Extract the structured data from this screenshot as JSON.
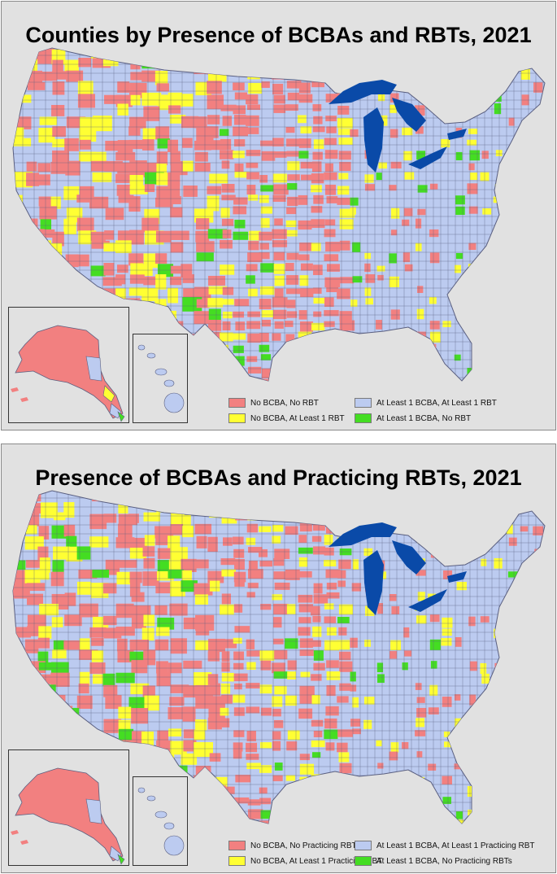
{
  "colors": {
    "no_bcba_no_rbt": "#f28080",
    "no_bcba_rbt": "#ffff33",
    "bcba_rbt": "#bccbf0",
    "bcba_no_rbt": "#44dd22",
    "lakes": "#0a4aa8",
    "background": "#e1e1e1",
    "county_border": "#5a5f80"
  },
  "maps": [
    {
      "title": "Counties by Presence of BCBAs and RBTs, 2021",
      "legend": [
        {
          "label": "No BCBA, No RBT",
          "color": "#f28080"
        },
        {
          "label": "At Least 1 BCBA, At Least 1 RBT",
          "color": "#bccbf0"
        },
        {
          "label": "No BCBA, At Least 1 RBT",
          "color": "#ffff33"
        },
        {
          "label": "At Least 1 BCBA, No RBT",
          "color": "#44dd22"
        }
      ]
    },
    {
      "title": "Presence of BCBAs and Practicing RBTs, 2021",
      "legend": [
        {
          "label": "No BCBA, No Practicing RBT",
          "color": "#f28080"
        },
        {
          "label": "At Least 1 BCBA, At Least 1 Practicing RBT",
          "color": "#bccbf0"
        },
        {
          "label": "No BCBA, At Least 1 Practicing RBT",
          "color": "#ffff33"
        },
        {
          "label": "At Least 1 BCBA, No Practicing RBTs",
          "color": "#44dd22"
        }
      ]
    }
  ]
}
